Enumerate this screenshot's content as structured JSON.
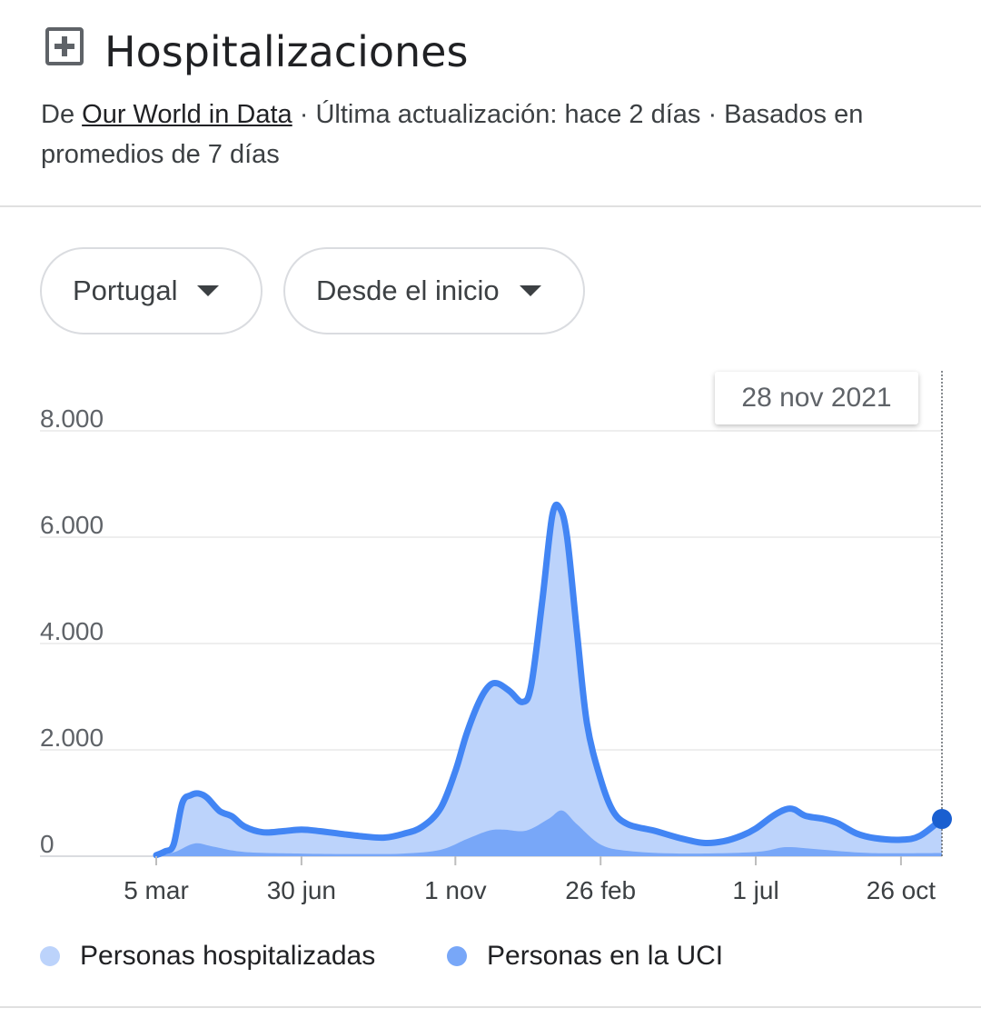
{
  "header": {
    "title": "Hospitalizaciones",
    "source_prefix": "De ",
    "source_link": "Our World in Data",
    "source_suffix": " · Última actualización: hace 2 días · Basados en promedios de 7 días"
  },
  "filters": {
    "country": "Portugal",
    "range": "Desde el inicio"
  },
  "tooltip": {
    "date": "28 nov 2021"
  },
  "colors": {
    "hosp_fill": "#bcd3fb",
    "hosp_line": "#4285f4",
    "icu_fill": "#78a7f8",
    "marker": "#1a5fd0"
  },
  "chart_data": {
    "type": "area",
    "x_tick_labels": [
      "5 mar",
      "30 jun",
      "1 nov",
      "26 feb",
      "1 jul",
      "26 oct"
    ],
    "y_tick_labels": [
      "0",
      "2.000",
      "4.000",
      "6.000",
      "8.000"
    ],
    "ylim": [
      0,
      8000
    ],
    "x_range": [
      "2020-03-05",
      "2021-11-28"
    ],
    "grid": true,
    "legend_position": "bottom",
    "series": [
      {
        "name": "Personas hospitalizadas",
        "points": [
          [
            "2020-03-05",
            20
          ],
          [
            "2020-03-12",
            90
          ],
          [
            "2020-03-19",
            220
          ],
          [
            "2020-03-26",
            1000
          ],
          [
            "2020-04-02",
            1150
          ],
          [
            "2020-04-08",
            1180
          ],
          [
            "2020-04-15",
            1100
          ],
          [
            "2020-04-25",
            850
          ],
          [
            "2020-05-05",
            750
          ],
          [
            "2020-05-15",
            560
          ],
          [
            "2020-05-30",
            450
          ],
          [
            "2020-06-15",
            470
          ],
          [
            "2020-06-30",
            500
          ],
          [
            "2020-07-15",
            470
          ],
          [
            "2020-08-01",
            420
          ],
          [
            "2020-08-20",
            370
          ],
          [
            "2020-09-05",
            350
          ],
          [
            "2020-09-20",
            420
          ],
          [
            "2020-10-05",
            550
          ],
          [
            "2020-10-20",
            900
          ],
          [
            "2020-11-01",
            1600
          ],
          [
            "2020-11-10",
            2300
          ],
          [
            "2020-11-20",
            2900
          ],
          [
            "2020-11-28",
            3200
          ],
          [
            "2020-12-05",
            3250
          ],
          [
            "2020-12-15",
            3100
          ],
          [
            "2020-12-25",
            2900
          ],
          [
            "2021-01-01",
            3200
          ],
          [
            "2021-01-10",
            4800
          ],
          [
            "2021-01-18",
            6400
          ],
          [
            "2021-01-24",
            6550
          ],
          [
            "2021-01-30",
            6000
          ],
          [
            "2021-02-07",
            4200
          ],
          [
            "2021-02-15",
            2500
          ],
          [
            "2021-02-26",
            1450
          ],
          [
            "2021-03-08",
            850
          ],
          [
            "2021-03-20",
            600
          ],
          [
            "2021-04-10",
            480
          ],
          [
            "2021-05-01",
            340
          ],
          [
            "2021-05-20",
            250
          ],
          [
            "2021-06-05",
            280
          ],
          [
            "2021-06-20",
            390
          ],
          [
            "2021-07-01",
            520
          ],
          [
            "2021-07-15",
            760
          ],
          [
            "2021-07-25",
            880
          ],
          [
            "2021-08-01",
            880
          ],
          [
            "2021-08-10",
            760
          ],
          [
            "2021-08-25",
            700
          ],
          [
            "2021-09-05",
            620
          ],
          [
            "2021-09-20",
            430
          ],
          [
            "2021-10-05",
            340
          ],
          [
            "2021-10-26",
            310
          ],
          [
            "2021-11-10",
            380
          ],
          [
            "2021-11-28",
            700
          ]
        ]
      },
      {
        "name": "Personas en la UCI",
        "points": [
          [
            "2020-03-05",
            0
          ],
          [
            "2020-03-20",
            80
          ],
          [
            "2020-04-05",
            240
          ],
          [
            "2020-04-20",
            180
          ],
          [
            "2020-05-15",
            80
          ],
          [
            "2020-06-30",
            50
          ],
          [
            "2020-08-15",
            40
          ],
          [
            "2020-09-20",
            50
          ],
          [
            "2020-10-20",
            120
          ],
          [
            "2020-11-10",
            320
          ],
          [
            "2020-11-28",
            480
          ],
          [
            "2020-12-10",
            500
          ],
          [
            "2020-12-28",
            480
          ],
          [
            "2021-01-15",
            700
          ],
          [
            "2021-01-26",
            860
          ],
          [
            "2021-02-07",
            600
          ],
          [
            "2021-02-26",
            220
          ],
          [
            "2021-03-20",
            100
          ],
          [
            "2021-05-01",
            50
          ],
          [
            "2021-07-01",
            80
          ],
          [
            "2021-07-25",
            170
          ],
          [
            "2021-08-20",
            130
          ],
          [
            "2021-10-01",
            60
          ],
          [
            "2021-11-28",
            60
          ]
        ]
      }
    ]
  }
}
